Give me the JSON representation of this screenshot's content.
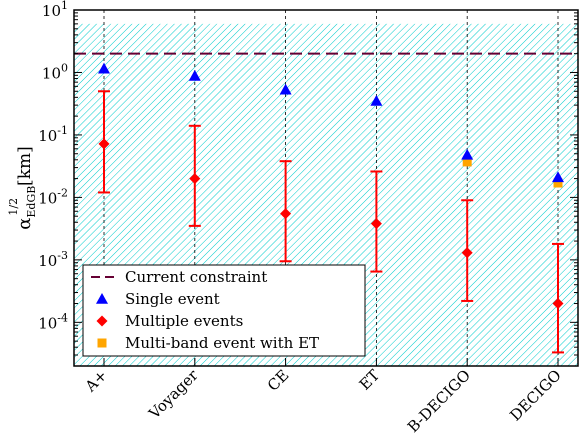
{
  "chart_data": {
    "type": "scatter",
    "yscale": "log",
    "ylim": [
      2e-05,
      10
    ],
    "ylabel": {
      "symbol": "α",
      "subscript": "EdGB",
      "superscript": "1/2",
      "unit": "[km]"
    },
    "y_ticks": [
      {
        "value": 0.0001,
        "base": "10",
        "exp": "-4"
      },
      {
        "value": 0.001,
        "base": "10",
        "exp": "-3"
      },
      {
        "value": 0.01,
        "base": "10",
        "exp": "-2"
      },
      {
        "value": 0.1,
        "base": "10",
        "exp": "-1"
      },
      {
        "value": 1,
        "base": "10",
        "exp": "0"
      },
      {
        "value": 10,
        "base": "10",
        "exp": "1"
      }
    ],
    "categories": [
      "A+",
      "Voyager",
      "CE",
      "ET",
      "B-DECIGO",
      "DECIGO"
    ],
    "current_constraint": 2.0,
    "excluded_region": [
      2e-05,
      6.0
    ],
    "series": [
      {
        "name": "Single event",
        "marker": "triangle",
        "color": "#0000ff",
        "values": [
          1.15,
          0.88,
          0.53,
          0.35,
          0.048,
          0.021
        ]
      },
      {
        "name": "Multiple events",
        "marker": "diamond",
        "color": "#ff0000",
        "values": [
          0.072,
          0.02,
          0.0055,
          0.0038,
          0.0013,
          0.0002
        ],
        "err_low": [
          0.012,
          0.0035,
          0.00095,
          0.00065,
          0.00022,
          3.3e-05
        ],
        "err_high": [
          0.5,
          0.14,
          0.038,
          0.026,
          0.009,
          0.0018
        ]
      },
      {
        "name": "Multi-band event with ET",
        "marker": "square",
        "color": "#ffa500",
        "points": [
          {
            "category": "B-DECIGO",
            "value": 0.037
          },
          {
            "category": "DECIGO",
            "value": 0.017
          }
        ]
      }
    ],
    "legend": {
      "position": "lower-left",
      "entries": [
        {
          "label": "Current constraint",
          "style": "dashed-line",
          "color": "#660033"
        },
        {
          "label": "Single event",
          "style": "triangle",
          "color": "#0000ff"
        },
        {
          "label": "Multiple events",
          "style": "diamond",
          "color": "#ff0000"
        },
        {
          "label": "Multi-band event with ET",
          "style": "square",
          "color": "#ffa500"
        }
      ]
    },
    "colors": {
      "hatch": "#00cccc",
      "constraint_line": "#660033",
      "category_lines": "#000000"
    }
  }
}
